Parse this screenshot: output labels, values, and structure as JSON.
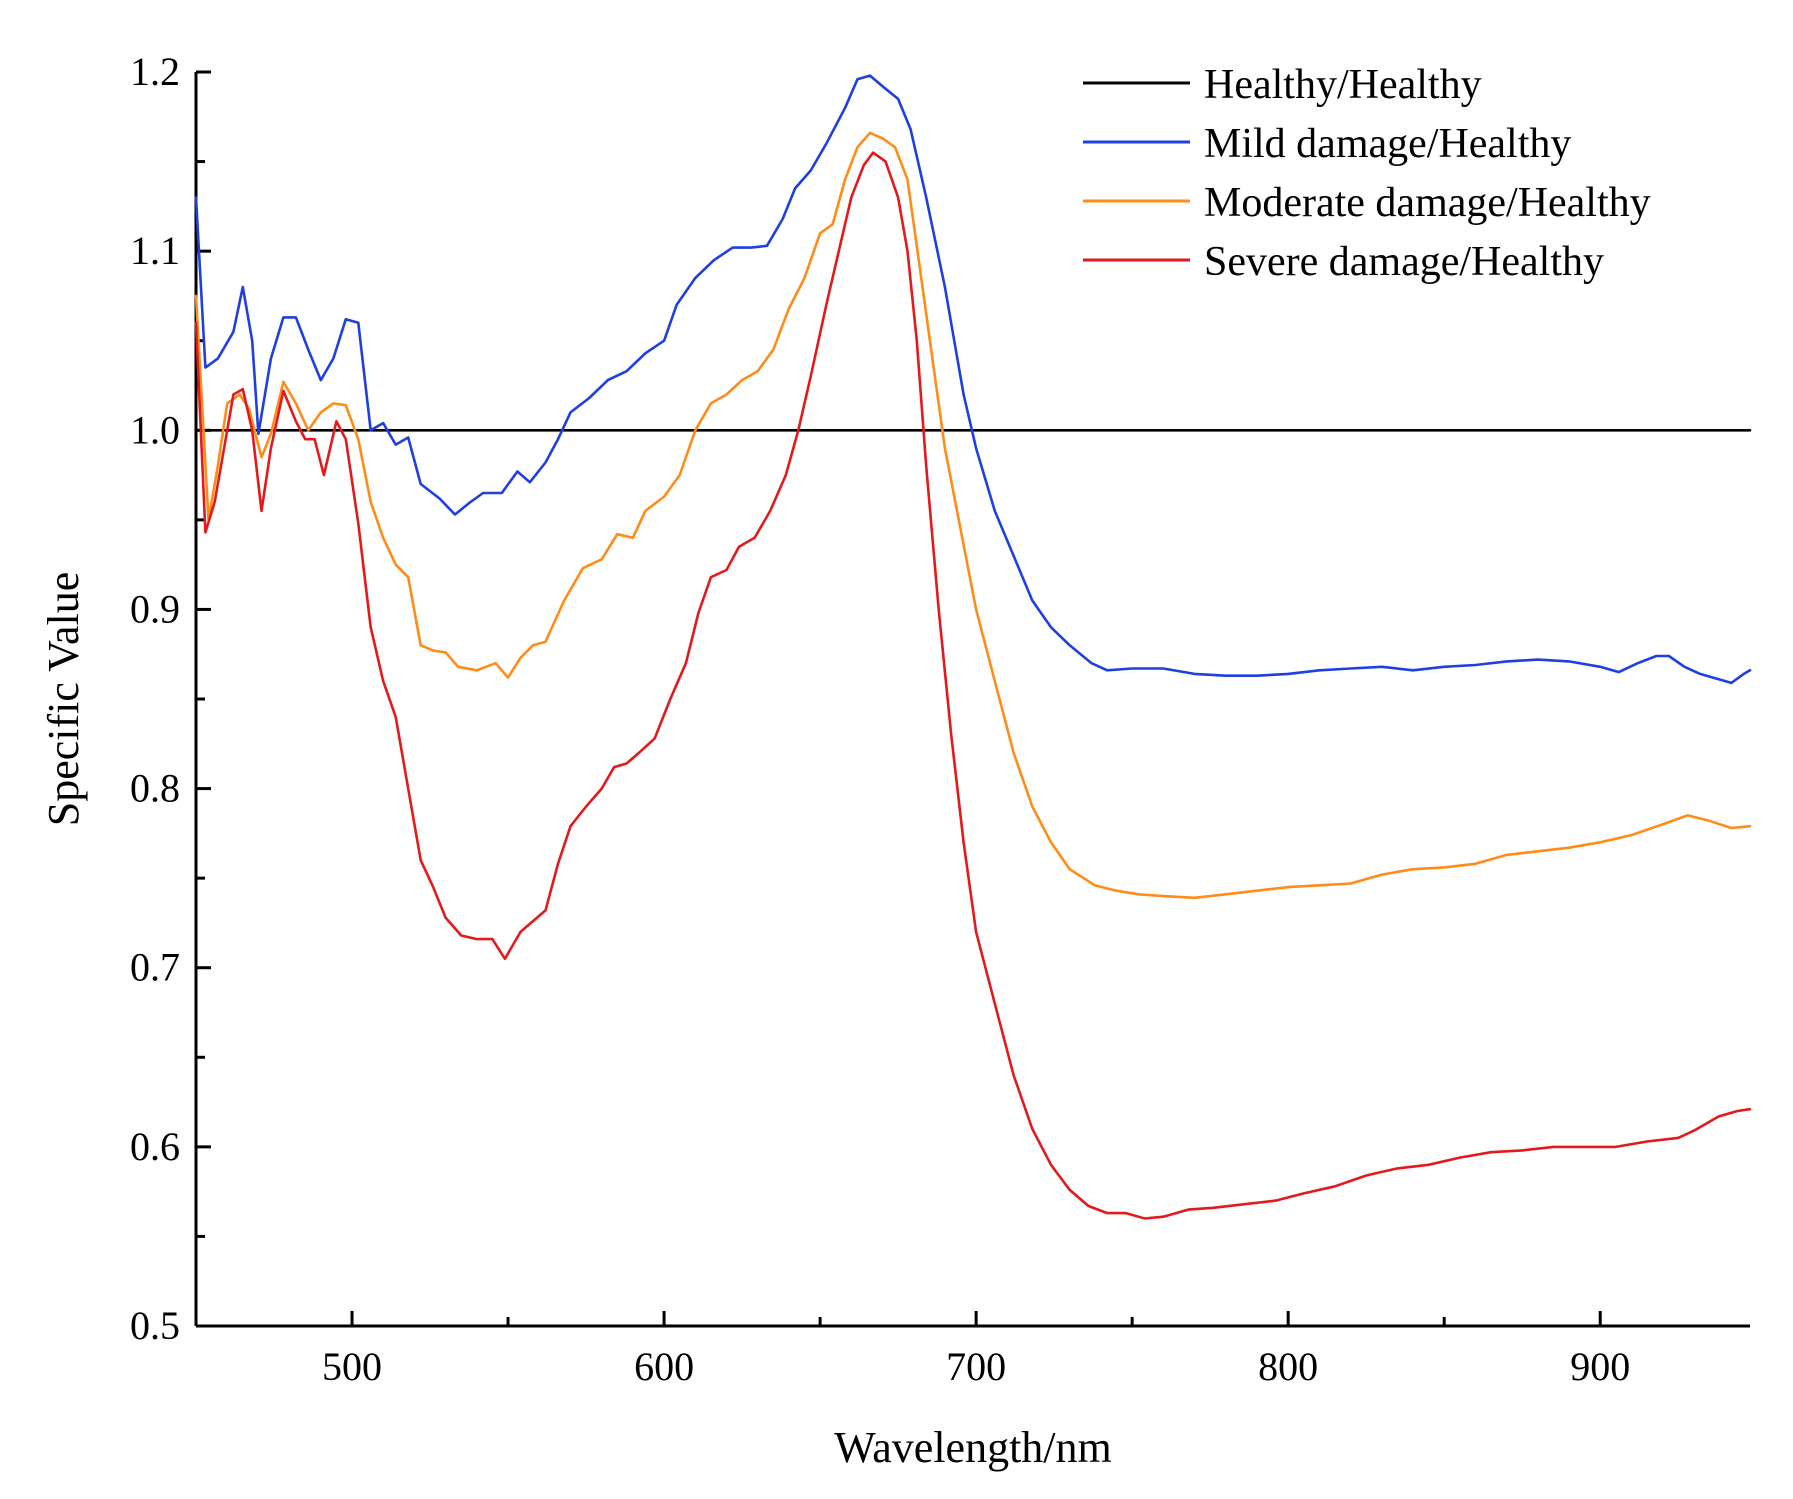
{
  "chart_data": {
    "type": "line",
    "title": "",
    "xlabel": "Wavelength/nm",
    "ylabel": "Specific Value",
    "xlim": [
      450,
      948
    ],
    "ylim": [
      0.5,
      1.2
    ],
    "x_ticks": [
      500,
      600,
      700,
      800,
      900
    ],
    "x_tick_labels": [
      "500",
      "600",
      "700",
      "800",
      "900"
    ],
    "y_ticks": [
      0.5,
      0.6,
      0.7,
      0.8,
      0.9,
      1.0,
      1.1,
      1.2
    ],
    "y_tick_labels": [
      "0.5",
      "0.6",
      "0.7",
      "0.8",
      "0.9",
      "1.0",
      "1.1",
      "1.2"
    ],
    "grid": false,
    "legend_position": "top-right",
    "series": [
      {
        "name": "Healthy/Healthy",
        "color": "#000000",
        "points": [
          [
            450,
            1.0
          ],
          [
            948,
            1.0
          ]
        ]
      },
      {
        "name": "Mild damage/Healthy",
        "color": "#1f3fe0",
        "points": [
          [
            450,
            1.13
          ],
          [
            453,
            1.035
          ],
          [
            457,
            1.04
          ],
          [
            462,
            1.055
          ],
          [
            465,
            1.08
          ],
          [
            468,
            1.05
          ],
          [
            470,
            0.998
          ],
          [
            474,
            1.04
          ],
          [
            478,
            1.063
          ],
          [
            482,
            1.063
          ],
          [
            486,
            1.045
          ],
          [
            490,
            1.028
          ],
          [
            494,
            1.04
          ],
          [
            498,
            1.062
          ],
          [
            502,
            1.06
          ],
          [
            506,
            1.0
          ],
          [
            510,
            1.004
          ],
          [
            514,
            0.992
          ],
          [
            518,
            0.996
          ],
          [
            522,
            0.97
          ],
          [
            528,
            0.962
          ],
          [
            533,
            0.953
          ],
          [
            538,
            0.96
          ],
          [
            542,
            0.965
          ],
          [
            548,
            0.965
          ],
          [
            553,
            0.977
          ],
          [
            557,
            0.971
          ],
          [
            562,
            0.982
          ],
          [
            566,
            0.995
          ],
          [
            570,
            1.01
          ],
          [
            576,
            1.018
          ],
          [
            582,
            1.028
          ],
          [
            588,
            1.033
          ],
          [
            594,
            1.043
          ],
          [
            600,
            1.05
          ],
          [
            604,
            1.07
          ],
          [
            610,
            1.085
          ],
          [
            616,
            1.095
          ],
          [
            622,
            1.102
          ],
          [
            628,
            1.102
          ],
          [
            633,
            1.103
          ],
          [
            638,
            1.118
          ],
          [
            642,
            1.135
          ],
          [
            647,
            1.145
          ],
          [
            652,
            1.16
          ],
          [
            658,
            1.18
          ],
          [
            662,
            1.196
          ],
          [
            666,
            1.198
          ],
          [
            670,
            1.192
          ],
          [
            675,
            1.185
          ],
          [
            679,
            1.168
          ],
          [
            684,
            1.13
          ],
          [
            690,
            1.08
          ],
          [
            696,
            1.02
          ],
          [
            700,
            0.99
          ],
          [
            706,
            0.955
          ],
          [
            712,
            0.93
          ],
          [
            718,
            0.905
          ],
          [
            724,
            0.89
          ],
          [
            730,
            0.88
          ],
          [
            737,
            0.87
          ],
          [
            742,
            0.866
          ],
          [
            750,
            0.867
          ],
          [
            760,
            0.867
          ],
          [
            770,
            0.864
          ],
          [
            780,
            0.863
          ],
          [
            790,
            0.863
          ],
          [
            800,
            0.864
          ],
          [
            810,
            0.866
          ],
          [
            820,
            0.867
          ],
          [
            830,
            0.868
          ],
          [
            840,
            0.866
          ],
          [
            850,
            0.868
          ],
          [
            860,
            0.869
          ],
          [
            870,
            0.871
          ],
          [
            880,
            0.872
          ],
          [
            890,
            0.871
          ],
          [
            900,
            0.868
          ],
          [
            906,
            0.865
          ],
          [
            912,
            0.87
          ],
          [
            918,
            0.874
          ],
          [
            922,
            0.874
          ],
          [
            927,
            0.868
          ],
          [
            932,
            0.864
          ],
          [
            936,
            0.862
          ],
          [
            942,
            0.859
          ],
          [
            946,
            0.864
          ],
          [
            948,
            0.866
          ]
        ]
      },
      {
        "name": "Moderate damage/Healthy",
        "color": "#ff8c19",
        "points": [
          [
            450,
            1.075
          ],
          [
            454,
            0.95
          ],
          [
            457,
            0.98
          ],
          [
            460,
            1.015
          ],
          [
            464,
            1.02
          ],
          [
            467,
            1.012
          ],
          [
            471,
            0.985
          ],
          [
            474,
            0.998
          ],
          [
            478,
            1.027
          ],
          [
            482,
            1.015
          ],
          [
            486,
            1.0
          ],
          [
            490,
            1.01
          ],
          [
            494,
            1.015
          ],
          [
            498,
            1.014
          ],
          [
            502,
            0.995
          ],
          [
            506,
            0.96
          ],
          [
            510,
            0.94
          ],
          [
            514,
            0.925
          ],
          [
            518,
            0.918
          ],
          [
            522,
            0.88
          ],
          [
            526,
            0.877
          ],
          [
            530,
            0.876
          ],
          [
            534,
            0.868
          ],
          [
            540,
            0.866
          ],
          [
            546,
            0.87
          ],
          [
            550,
            0.862
          ],
          [
            554,
            0.873
          ],
          [
            558,
            0.88
          ],
          [
            562,
            0.882
          ],
          [
            568,
            0.905
          ],
          [
            574,
            0.923
          ],
          [
            580,
            0.928
          ],
          [
            585,
            0.942
          ],
          [
            590,
            0.94
          ],
          [
            594,
            0.955
          ],
          [
            600,
            0.963
          ],
          [
            605,
            0.975
          ],
          [
            610,
            1.0
          ],
          [
            615,
            1.015
          ],
          [
            620,
            1.02
          ],
          [
            625,
            1.028
          ],
          [
            630,
            1.033
          ],
          [
            635,
            1.045
          ],
          [
            640,
            1.068
          ],
          [
            645,
            1.085
          ],
          [
            650,
            1.11
          ],
          [
            654,
            1.115
          ],
          [
            658,
            1.14
          ],
          [
            662,
            1.158
          ],
          [
            666,
            1.166
          ],
          [
            670,
            1.163
          ],
          [
            674,
            1.158
          ],
          [
            678,
            1.14
          ],
          [
            682,
            1.09
          ],
          [
            686,
            1.04
          ],
          [
            690,
            0.99
          ],
          [
            695,
            0.945
          ],
          [
            700,
            0.9
          ],
          [
            706,
            0.86
          ],
          [
            712,
            0.82
          ],
          [
            718,
            0.79
          ],
          [
            724,
            0.77
          ],
          [
            730,
            0.755
          ],
          [
            738,
            0.746
          ],
          [
            745,
            0.743
          ],
          [
            752,
            0.741
          ],
          [
            760,
            0.74
          ],
          [
            770,
            0.739
          ],
          [
            780,
            0.741
          ],
          [
            790,
            0.743
          ],
          [
            800,
            0.745
          ],
          [
            810,
            0.746
          ],
          [
            820,
            0.747
          ],
          [
            830,
            0.752
          ],
          [
            840,
            0.755
          ],
          [
            850,
            0.756
          ],
          [
            860,
            0.758
          ],
          [
            870,
            0.763
          ],
          [
            880,
            0.765
          ],
          [
            890,
            0.767
          ],
          [
            900,
            0.77
          ],
          [
            910,
            0.774
          ],
          [
            920,
            0.78
          ],
          [
            928,
            0.785
          ],
          [
            935,
            0.782
          ],
          [
            942,
            0.778
          ],
          [
            948,
            0.779
          ]
        ]
      },
      {
        "name": "Severe damage/Healthy",
        "color": "#e31a1c",
        "points": [
          [
            450,
            1.06
          ],
          [
            453,
            0.943
          ],
          [
            456,
            0.96
          ],
          [
            459,
            0.99
          ],
          [
            462,
            1.02
          ],
          [
            465,
            1.023
          ],
          [
            468,
            1.0
          ],
          [
            471,
            0.955
          ],
          [
            474,
            0.99
          ],
          [
            478,
            1.022
          ],
          [
            482,
            1.005
          ],
          [
            485,
            0.995
          ],
          [
            488,
            0.995
          ],
          [
            491,
            0.975
          ],
          [
            495,
            1.005
          ],
          [
            498,
            0.995
          ],
          [
            502,
            0.948
          ],
          [
            506,
            0.89
          ],
          [
            510,
            0.86
          ],
          [
            514,
            0.84
          ],
          [
            518,
            0.8
          ],
          [
            522,
            0.76
          ],
          [
            526,
            0.745
          ],
          [
            530,
            0.728
          ],
          [
            535,
            0.718
          ],
          [
            540,
            0.716
          ],
          [
            545,
            0.716
          ],
          [
            549,
            0.705
          ],
          [
            554,
            0.72
          ],
          [
            558,
            0.726
          ],
          [
            562,
            0.732
          ],
          [
            566,
            0.758
          ],
          [
            570,
            0.779
          ],
          [
            575,
            0.79
          ],
          [
            580,
            0.8
          ],
          [
            584,
            0.812
          ],
          [
            588,
            0.814
          ],
          [
            592,
            0.82
          ],
          [
            597,
            0.828
          ],
          [
            602,
            0.85
          ],
          [
            607,
            0.87
          ],
          [
            611,
            0.898
          ],
          [
            615,
            0.918
          ],
          [
            620,
            0.922
          ],
          [
            624,
            0.935
          ],
          [
            629,
            0.94
          ],
          [
            634,
            0.955
          ],
          [
            639,
            0.975
          ],
          [
            643,
            1.0
          ],
          [
            647,
            1.03
          ],
          [
            652,
            1.07
          ],
          [
            656,
            1.1
          ],
          [
            660,
            1.13
          ],
          [
            664,
            1.148
          ],
          [
            667,
            1.155
          ],
          [
            671,
            1.15
          ],
          [
            675,
            1.13
          ],
          [
            678,
            1.1
          ],
          [
            681,
            1.05
          ],
          [
            684,
            0.98
          ],
          [
            688,
            0.9
          ],
          [
            692,
            0.83
          ],
          [
            696,
            0.77
          ],
          [
            700,
            0.72
          ],
          [
            706,
            0.68
          ],
          [
            712,
            0.64
          ],
          [
            718,
            0.61
          ],
          [
            724,
            0.59
          ],
          [
            730,
            0.576
          ],
          [
            736,
            0.567
          ],
          [
            742,
            0.563
          ],
          [
            748,
            0.563
          ],
          [
            754,
            0.56
          ],
          [
            760,
            0.561
          ],
          [
            768,
            0.565
          ],
          [
            776,
            0.566
          ],
          [
            786,
            0.568
          ],
          [
            796,
            0.57
          ],
          [
            805,
            0.574
          ],
          [
            815,
            0.578
          ],
          [
            825,
            0.584
          ],
          [
            835,
            0.588
          ],
          [
            845,
            0.59
          ],
          [
            855,
            0.594
          ],
          [
            865,
            0.597
          ],
          [
            875,
            0.598
          ],
          [
            885,
            0.6
          ],
          [
            895,
            0.6
          ],
          [
            905,
            0.6
          ],
          [
            915,
            0.603
          ],
          [
            925,
            0.605
          ],
          [
            930,
            0.609
          ],
          [
            938,
            0.617
          ],
          [
            944,
            0.62
          ],
          [
            948,
            0.621
          ]
        ]
      }
    ]
  }
}
